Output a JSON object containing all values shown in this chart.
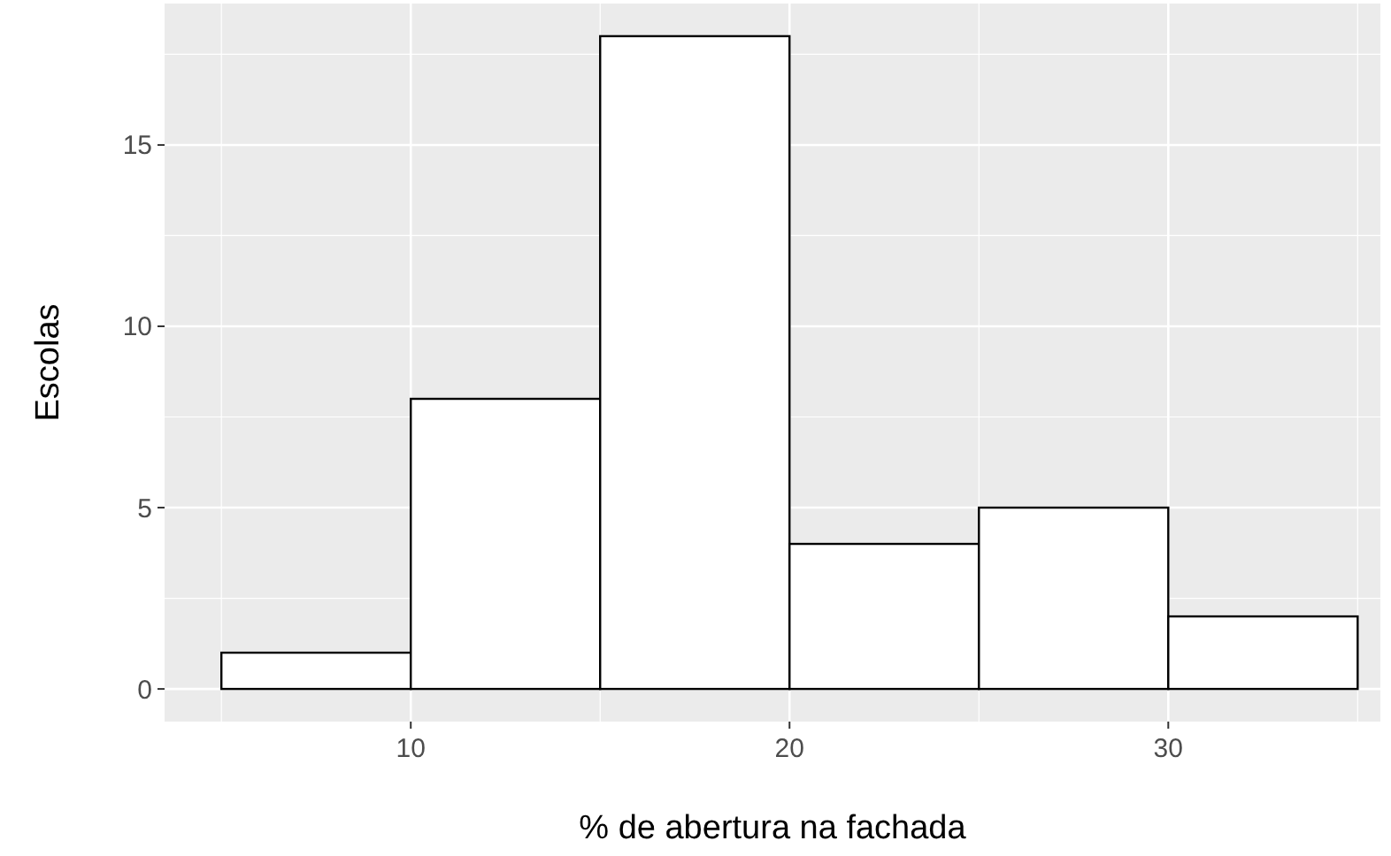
{
  "chart_data": {
    "type": "histogram",
    "xlabel": "% de abertura na fachada",
    "ylabel": "Escolas",
    "bins": [
      5,
      10,
      15,
      20,
      25,
      30,
      35
    ],
    "values": [
      1,
      8,
      18,
      4,
      5,
      2
    ],
    "color": "#ffffff",
    "xlim": [
      3.5,
      35.6
    ],
    "ylim": [
      -0.9,
      18.9
    ],
    "xticks": [
      10,
      20,
      30
    ],
    "yticks": [
      0,
      5,
      10,
      15
    ],
    "grid": true
  }
}
